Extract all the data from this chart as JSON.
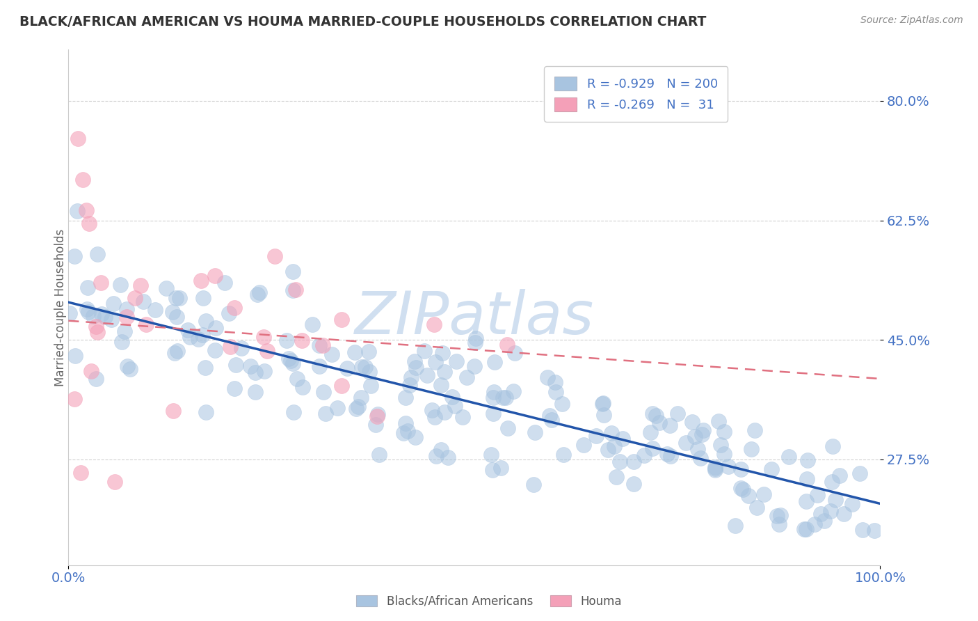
{
  "title": "BLACK/AFRICAN AMERICAN VS HOUMA MARRIED-COUPLE HOUSEHOLDS CORRELATION CHART",
  "source": "Source: ZipAtlas.com",
  "ylabel": "Married-couple Households",
  "legend_labels": [
    "Blacks/African Americans",
    "Houma"
  ],
  "ytick_labels": [
    "80.0%",
    "62.5%",
    "45.0%",
    "27.5%"
  ],
  "ytick_values": [
    0.8,
    0.625,
    0.45,
    0.275
  ],
  "xtick_labels": [
    "0.0%",
    "100.0%"
  ],
  "xlim": [
    0.0,
    1.0
  ],
  "ylim": [
    0.12,
    0.875
  ],
  "blue_color": "#a8c4e0",
  "blue_line_color": "#2255aa",
  "pink_color": "#f4a0b8",
  "pink_line_color": "#e07080",
  "watermark": "ZIPatlas",
  "watermark_color": "#d0dff0",
  "background_color": "#ffffff",
  "grid_color": "#cccccc",
  "title_color": "#333333",
  "axis_label_color": "#666666",
  "tick_label_color": "#4472c4",
  "blue_R": -0.929,
  "blue_N": 200,
  "pink_R": -0.269,
  "pink_N": 31,
  "blue_intercept": 0.505,
  "blue_slope": -0.295,
  "blue_noise": 0.048,
  "pink_intercept": 0.478,
  "pink_slope": -0.085,
  "pink_noise": 0.075
}
